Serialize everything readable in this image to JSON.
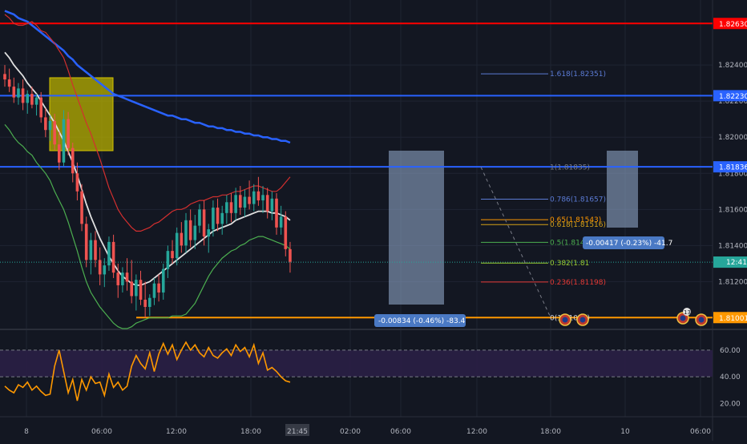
{
  "instrument": {
    "timeframe": "15m"
  },
  "colors": {
    "background": "#131722",
    "grid": "#1f2433",
    "axis_text": "#b2b5be",
    "bull": "#26a69a",
    "bear": "#ef5350",
    "bb_upper": "#d32f2f",
    "bb_lower": "#4caf50",
    "sma_white": "#e0e0e0",
    "ma_blue": "#2962ff",
    "hline_red": "#ff0000",
    "hline_blue": "#2962ff",
    "hline_orange": "#ff9800",
    "rsi_line": "#ff9800",
    "rsi_band": "#2a1f45"
  },
  "price_axis": {
    "ticks": [
      "1.82400",
      "1.82200",
      "1.82000",
      "1.81800",
      "1.81600",
      "1.81400",
      "1.81200"
    ],
    "labels": [
      {
        "text": "1.82630",
        "price": 1.8263,
        "color": "#ff0000"
      },
      {
        "text": "1.82230",
        "price": 1.8223,
        "color": "#2962ff"
      },
      {
        "text": "1.81836",
        "price": 1.81836,
        "color": "#2962ff"
      },
      {
        "text": "1.81308",
        "price": 1.81308,
        "color": "#26a69a"
      },
      {
        "text": "1.81001",
        "price": 1.81001,
        "color": "#ff9800"
      }
    ],
    "countdown": "12:41"
  },
  "rsi_axis": {
    "ticks": [
      "60.00",
      "40.00",
      "20.00"
    ],
    "upper": 60,
    "lower": 40
  },
  "time_axis": {
    "ticks": [
      "8",
      "06:00",
      "12:00",
      "18:00",
      "21:45",
      "02:00",
      "06:00",
      "12:00",
      "18:00",
      "10",
      "06:00"
    ]
  },
  "fib": {
    "levels": [
      {
        "text": "1.618(1.82351)",
        "color": "#5b7bd5"
      },
      {
        "text": "1(1.81835)",
        "color": "#787b86"
      },
      {
        "text": "0.786(1.81657)",
        "color": "#5b7bd5"
      },
      {
        "text": "0.65(1.81543)",
        "color": "#ff9800"
      },
      {
        "text": "0.618(1.81516)",
        "color": "#d4a017"
      },
      {
        "text": "0.5(1.81418)",
        "color": "#4caf50"
      },
      {
        "text": "0.382(1.81",
        "color": "#9acd32"
      },
      {
        "text": "0.236(1.81198)",
        "color": "#e53935"
      },
      {
        "text": "0(1.81001)",
        "color": "#d1d4dc"
      }
    ]
  },
  "measures": [
    {
      "text": "-0.00834 (-0.46%) -83.4"
    },
    {
      "text": "-0.00417 (-0.23%) -41.7"
    }
  ],
  "event_badge": "13",
  "chart_data": {
    "type": "candlestick",
    "ohlc": [
      [
        1.8235,
        1.824,
        1.8228,
        1.8232
      ],
      [
        1.8232,
        1.8238,
        1.8225,
        1.8228
      ],
      [
        1.8228,
        1.8233,
        1.8219,
        1.8222
      ],
      [
        1.8222,
        1.823,
        1.8218,
        1.8227
      ],
      [
        1.8227,
        1.8232,
        1.8215,
        1.8219
      ],
      [
        1.8219,
        1.8226,
        1.8213,
        1.8224
      ],
      [
        1.8224,
        1.8228,
        1.8216,
        1.8218
      ],
      [
        1.8218,
        1.8224,
        1.8212,
        1.8222
      ],
      [
        1.8222,
        1.8225,
        1.8208,
        1.8211
      ],
      [
        1.8211,
        1.8216,
        1.82,
        1.8204
      ],
      [
        1.8204,
        1.8212,
        1.8198,
        1.8209
      ],
      [
        1.8209,
        1.8213,
        1.8193,
        1.8196
      ],
      [
        1.8196,
        1.8203,
        1.8182,
        1.8186
      ],
      [
        1.8186,
        1.8215,
        1.8184,
        1.821
      ],
      [
        1.821,
        1.8214,
        1.819,
        1.8194
      ],
      [
        1.8194,
        1.8197,
        1.8175,
        1.818
      ],
      [
        1.818,
        1.8186,
        1.8165,
        1.817
      ],
      [
        1.817,
        1.8174,
        1.8148,
        1.8152
      ],
      [
        1.8152,
        1.8156,
        1.8128,
        1.8132
      ],
      [
        1.8132,
        1.8147,
        1.8124,
        1.8143
      ],
      [
        1.8143,
        1.8148,
        1.8128,
        1.8132
      ],
      [
        1.8132,
        1.8139,
        1.8118,
        1.8124
      ],
      [
        1.8124,
        1.8133,
        1.8117,
        1.8129
      ],
      [
        1.8129,
        1.8145,
        1.8126,
        1.8142
      ],
      [
        1.8142,
        1.8146,
        1.8122,
        1.8125
      ],
      [
        1.8125,
        1.813,
        1.8111,
        1.8118
      ],
      [
        1.8118,
        1.8128,
        1.8114,
        1.8125
      ],
      [
        1.8125,
        1.8133,
        1.8115,
        1.812
      ],
      [
        1.812,
        1.8132,
        1.8108,
        1.8112
      ],
      [
        1.8112,
        1.8124,
        1.8104,
        1.8121
      ],
      [
        1.8121,
        1.8126,
        1.8107,
        1.811
      ],
      [
        1.811,
        1.812,
        1.81,
        1.8106
      ],
      [
        1.8106,
        1.8113,
        1.8101,
        1.8111
      ],
      [
        1.8111,
        1.8122,
        1.8107,
        1.8119
      ],
      [
        1.8119,
        1.8124,
        1.8109,
        1.8114
      ],
      [
        1.8114,
        1.813,
        1.811,
        1.8127
      ],
      [
        1.8127,
        1.814,
        1.8122,
        1.8137
      ],
      [
        1.8137,
        1.8143,
        1.813,
        1.8133
      ],
      [
        1.8133,
        1.815,
        1.8129,
        1.8147
      ],
      [
        1.8147,
        1.8153,
        1.8136,
        1.814
      ],
      [
        1.814,
        1.8158,
        1.8136,
        1.8154
      ],
      [
        1.8154,
        1.816,
        1.8139,
        1.8143
      ],
      [
        1.8143,
        1.8157,
        1.8138,
        1.8151
      ],
      [
        1.8151,
        1.8163,
        1.8147,
        1.816
      ],
      [
        1.816,
        1.8165,
        1.814,
        1.8145
      ],
      [
        1.8145,
        1.8152,
        1.8136,
        1.8149
      ],
      [
        1.8149,
        1.8165,
        1.8145,
        1.8161
      ],
      [
        1.8161,
        1.8166,
        1.8148,
        1.8152
      ],
      [
        1.8152,
        1.8162,
        1.8146,
        1.8158
      ],
      [
        1.8158,
        1.8168,
        1.8152,
        1.8164
      ],
      [
        1.8164,
        1.8169,
        1.8153,
        1.8158
      ],
      [
        1.8158,
        1.8172,
        1.8154,
        1.8168
      ],
      [
        1.8168,
        1.8173,
        1.8157,
        1.8161
      ],
      [
        1.8161,
        1.8171,
        1.8156,
        1.8167
      ],
      [
        1.8167,
        1.8176,
        1.816,
        1.8163
      ],
      [
        1.8163,
        1.8174,
        1.8159,
        1.817
      ],
      [
        1.817,
        1.8178,
        1.8162,
        1.8165
      ],
      [
        1.8165,
        1.8173,
        1.8158,
        1.8168
      ],
      [
        1.8168,
        1.8172,
        1.8155,
        1.8159
      ],
      [
        1.8159,
        1.817,
        1.8154,
        1.8166
      ],
      [
        1.8166,
        1.8169,
        1.8146,
        1.815
      ],
      [
        1.815,
        1.8162,
        1.8146,
        1.8156
      ],
      [
        1.8156,
        1.8159,
        1.8134,
        1.8138
      ],
      [
        1.8138,
        1.8142,
        1.8125,
        1.8131
      ]
    ],
    "bb_upper": [
      1.8268,
      1.8266,
      1.8263,
      1.8262,
      1.8262,
      1.8263,
      1.8264,
      1.8262,
      1.8259,
      1.8258,
      1.8255,
      1.8252,
      1.8248,
      1.8244,
      1.8237,
      1.8229,
      1.8222,
      1.8215,
      1.8208,
      1.8202,
      1.8195,
      1.8188,
      1.818,
      1.8172,
      1.8166,
      1.816,
      1.8156,
      1.8153,
      1.815,
      1.8148,
      1.8148,
      1.8149,
      1.815,
      1.8152,
      1.8153,
      1.8155,
      1.8157,
      1.8159,
      1.816,
      1.816,
      1.8161,
      1.8163,
      1.8164,
      1.8165,
      1.8165,
      1.8166,
      1.8167,
      1.8167,
      1.8168,
      1.8168,
      1.8169,
      1.817,
      1.817,
      1.8171,
      1.8172,
      1.8173,
      1.8173,
      1.8172,
      1.8171,
      1.817,
      1.817,
      1.8172,
      1.8175,
      1.8178
    ],
    "bb_lower": [
      1.8207,
      1.8204,
      1.82,
      1.8197,
      1.8195,
      1.8192,
      1.819,
      1.8186,
      1.8183,
      1.818,
      1.8176,
      1.817,
      1.8165,
      1.816,
      1.8153,
      1.8145,
      1.8137,
      1.8128,
      1.812,
      1.8114,
      1.811,
      1.8106,
      1.8103,
      1.81,
      1.8097,
      1.8095,
      1.8094,
      1.8094,
      1.8095,
      1.8097,
      1.8098,
      1.8099,
      1.81,
      1.81,
      1.81,
      1.81,
      1.81,
      1.8101,
      1.8101,
      1.8101,
      1.8102,
      1.8105,
      1.8108,
      1.8113,
      1.8118,
      1.8123,
      1.8127,
      1.813,
      1.8133,
      1.8135,
      1.8137,
      1.8138,
      1.814,
      1.8141,
      1.8143,
      1.8144,
      1.8145,
      1.8145,
      1.8144,
      1.8143,
      1.8142,
      1.8141,
      1.814,
      1.8138
    ],
    "sma_white": [
      1.8247,
      1.8244,
      1.824,
      1.8237,
      1.8234,
      1.823,
      1.8227,
      1.8224,
      1.822,
      1.8216,
      1.8212,
      1.8208,
      1.8203,
      1.8198,
      1.8192,
      1.8186,
      1.8179,
      1.8171,
      1.8163,
      1.8156,
      1.815,
      1.8144,
      1.8139,
      1.8134,
      1.813,
      1.8126,
      1.8123,
      1.8121,
      1.8119,
      1.8118,
      1.8118,
      1.8119,
      1.812,
      1.8122,
      1.8124,
      1.8126,
      1.8128,
      1.813,
      1.8132,
      1.8134,
      1.8136,
      1.8138,
      1.814,
      1.8142,
      1.8144,
      1.8146,
      1.8148,
      1.8149,
      1.815,
      1.8151,
      1.8152,
      1.8154,
      1.8155,
      1.8156,
      1.8157,
      1.8158,
      1.8159,
      1.8159,
      1.8159,
      1.8158,
      1.8158,
      1.8157,
      1.8156,
      1.8154
    ],
    "ma_blue": [
      1.827,
      1.8269,
      1.8268,
      1.8266,
      1.8265,
      1.8264,
      1.8262,
      1.826,
      1.8258,
      1.8256,
      1.8254,
      1.8252,
      1.825,
      1.8248,
      1.8245,
      1.8243,
      1.824,
      1.8238,
      1.8236,
      1.8234,
      1.8232,
      1.823,
      1.8228,
      1.8226,
      1.8224,
      1.8223,
      1.8222,
      1.8221,
      1.822,
      1.8219,
      1.8218,
      1.8217,
      1.8216,
      1.8215,
      1.8214,
      1.8213,
      1.8212,
      1.8212,
      1.8211,
      1.821,
      1.821,
      1.8209,
      1.8208,
      1.8208,
      1.8207,
      1.8206,
      1.8206,
      1.8205,
      1.8205,
      1.8204,
      1.8204,
      1.8203,
      1.8203,
      1.8202,
      1.8202,
      1.8201,
      1.8201,
      1.82,
      1.82,
      1.8199,
      1.8199,
      1.8198,
      1.8198,
      1.8197
    ],
    "rsi": [
      33,
      30,
      28,
      34,
      32,
      36,
      30,
      33,
      29,
      26,
      27,
      48,
      60,
      44,
      28,
      38,
      22,
      38,
      30,
      40,
      35,
      36,
      26,
      42,
      32,
      36,
      30,
      33,
      48,
      56,
      50,
      46,
      58,
      44,
      57,
      65,
      57,
      64,
      53,
      60,
      66,
      60,
      64,
      58,
      55,
      62,
      56,
      54,
      58,
      61,
      56,
      64,
      59,
      62,
      55,
      64,
      50,
      58,
      45,
      47,
      44,
      40,
      37,
      36
    ],
    "ylim": [
      1.8094,
      1.8276
    ],
    "rsi_ylim": [
      10,
      75
    ]
  }
}
